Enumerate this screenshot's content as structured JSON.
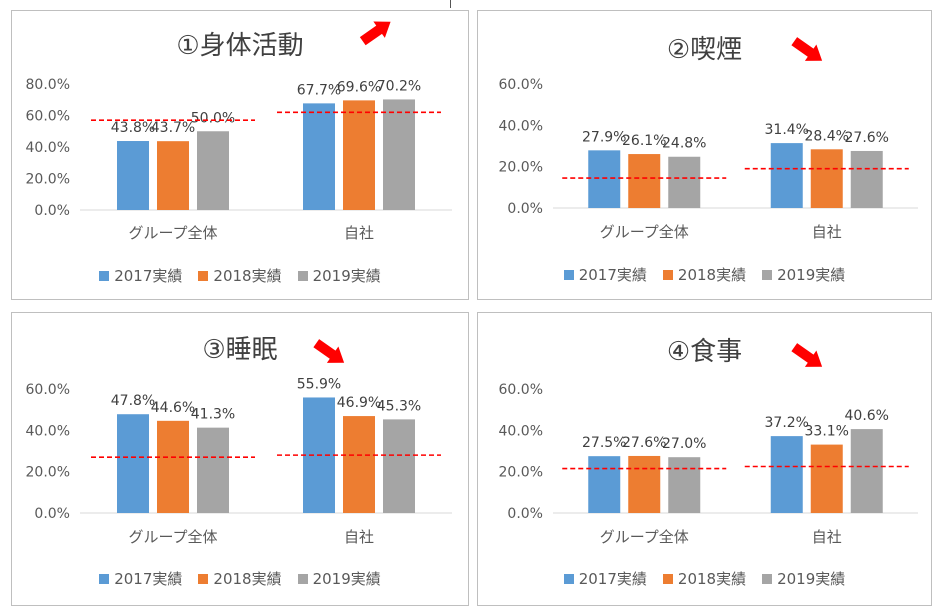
{
  "legend_labels": [
    "2017実績",
    "2018実績",
    "2019実績"
  ],
  "series_colors": [
    "#5b9bd5",
    "#ed7d31",
    "#a5a5a5"
  ],
  "benchmark_color": "#ff0000",
  "arrow_color": "#ff0000",
  "chart_data": [
    {
      "type": "bar",
      "title": "①身体活動",
      "categories": [
        "グループ全体",
        "自社"
      ],
      "series": [
        {
          "name": "2017実績",
          "values": [
            43.8,
            67.7
          ]
        },
        {
          "name": "2018実績",
          "values": [
            43.7,
            69.6
          ]
        },
        {
          "name": "2019実績",
          "values": [
            50.0,
            70.2
          ]
        }
      ],
      "benchmark": [
        57,
        62
      ],
      "y_ticks": [
        0,
        20,
        40,
        60,
        80
      ],
      "ylim": [
        0,
        80
      ],
      "value_labels": [
        [
          "43.8%",
          "43.7%",
          "50.0%"
        ],
        [
          "67.7%",
          "69.6%",
          "70.2%"
        ]
      ],
      "tick_labels": [
        "0.0%",
        "20.0%",
        "40.0%",
        "60.0%",
        "80.0%"
      ],
      "arrow": "up",
      "grid": false,
      "legend": "bottom"
    },
    {
      "type": "bar",
      "title": "②喫煙",
      "categories": [
        "グループ全体",
        "自社"
      ],
      "series": [
        {
          "name": "2017実績",
          "values": [
            27.9,
            31.4
          ]
        },
        {
          "name": "2018実績",
          "values": [
            26.1,
            28.4
          ]
        },
        {
          "name": "2019実績",
          "values": [
            24.8,
            27.6
          ]
        }
      ],
      "benchmark": [
        14.5,
        19
      ],
      "y_ticks": [
        0,
        20,
        40,
        60
      ],
      "ylim": [
        0,
        60
      ],
      "value_labels": [
        [
          "27.9%",
          "26.1%",
          "24.8%"
        ],
        [
          "31.4%",
          "28.4%",
          "27.6%"
        ]
      ],
      "tick_labels": [
        "0.0%",
        "20.0%",
        "40.0%",
        "60.0%"
      ],
      "arrow": "down",
      "grid": false,
      "legend": "bottom"
    },
    {
      "type": "bar",
      "title": "③睡眠",
      "categories": [
        "グループ全体",
        "自社"
      ],
      "series": [
        {
          "name": "2017実績",
          "values": [
            47.8,
            55.9
          ]
        },
        {
          "name": "2018実績",
          "values": [
            44.6,
            46.9
          ]
        },
        {
          "name": "2019実績",
          "values": [
            41.3,
            45.3
          ]
        }
      ],
      "benchmark": [
        27,
        28
      ],
      "y_ticks": [
        0,
        20,
        40,
        60
      ],
      "ylim": [
        0,
        60
      ],
      "value_labels": [
        [
          "47.8%",
          "44.6%",
          "41.3%"
        ],
        [
          "55.9%",
          "46.9%",
          "45.3%"
        ]
      ],
      "tick_labels": [
        "0.0%",
        "20.0%",
        "40.0%",
        "60.0%"
      ],
      "arrow": "down",
      "grid": false,
      "legend": "bottom"
    },
    {
      "type": "bar",
      "title": "④食事",
      "categories": [
        "グループ全体",
        "自社"
      ],
      "series": [
        {
          "name": "2017実績",
          "values": [
            27.5,
            37.2
          ]
        },
        {
          "name": "2018実績",
          "values": [
            27.6,
            33.1
          ]
        },
        {
          "name": "2019実績",
          "values": [
            27.0,
            40.6
          ]
        }
      ],
      "benchmark": [
        21.5,
        22.5
      ],
      "y_ticks": [
        0,
        20,
        40,
        60
      ],
      "ylim": [
        0,
        60
      ],
      "value_labels": [
        [
          "27.5%",
          "27.6%",
          "27.0%"
        ],
        [
          "37.2%",
          "33.1%",
          "40.6%"
        ]
      ],
      "tick_labels": [
        "0.0%",
        "20.0%",
        "40.0%",
        "60.0%"
      ],
      "arrow": "down",
      "grid": false,
      "legend": "bottom"
    }
  ]
}
